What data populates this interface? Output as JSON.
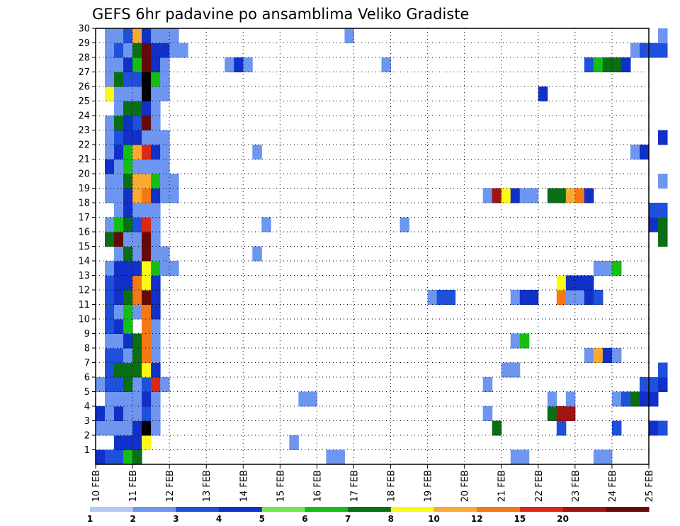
{
  "chart_data": {
    "type": "heatmap",
    "title": "GEFS 6hr padavine po ansamblima Veliko Gradiste",
    "x_ticks": [
      "10 FEB",
      "11 FEB",
      "12 FEB",
      "13 FEB",
      "14 FEB",
      "15 FEB",
      "16 FEB",
      "17 FEB",
      "18 FEB",
      "19 FEB",
      "20 FEB",
      "21 FEB",
      "22 FEB",
      "23 FEB",
      "24 FEB",
      "25 FEB"
    ],
    "y_ticks": [
      1,
      2,
      3,
      4,
      5,
      6,
      7,
      8,
      9,
      10,
      11,
      12,
      13,
      14,
      15,
      16,
      17,
      18,
      19,
      20,
      21,
      22,
      23,
      24,
      25,
      26,
      27,
      28,
      29,
      30
    ],
    "xlim": [
      0,
      15
    ],
    "ylim": [
      0,
      30
    ],
    "bin_hours": 6,
    "grid": true,
    "legend": {
      "placement": "bottom",
      "labels": [
        "1",
        "2",
        "3",
        "4",
        "5",
        "6",
        "7",
        "8",
        "10",
        "12",
        "15",
        "20"
      ],
      "colors": [
        "#b4c8f5",
        "#6e96f0",
        "#1e50dc",
        "#1030c8",
        "#78e650",
        "#14be14",
        "#0a6e14",
        "#fafa14",
        "#faaa32",
        "#f57814",
        "#dc2814",
        "#a01414",
        "#640a0a"
      ]
    },
    "cells": [
      [
        0,
        0,
        3
      ],
      [
        0,
        2,
        1
      ],
      [
        0,
        3,
        3
      ],
      [
        0,
        5,
        1
      ],
      [
        1,
        0,
        2
      ],
      [
        1,
        2,
        1
      ],
      [
        1,
        3,
        1
      ],
      [
        1,
        4,
        1
      ],
      [
        1,
        5,
        2
      ],
      [
        1,
        6,
        2
      ],
      [
        1,
        7,
        2
      ],
      [
        1,
        8,
        1
      ],
      [
        1,
        9,
        2
      ],
      [
        1,
        10,
        2
      ],
      [
        1,
        11,
        2
      ],
      [
        1,
        12,
        2
      ],
      [
        1,
        13,
        1
      ],
      [
        1,
        15,
        6
      ],
      [
        1,
        16,
        1
      ],
      [
        1,
        18,
        1
      ],
      [
        1,
        19,
        1
      ],
      [
        1,
        20,
        3
      ],
      [
        1,
        21,
        1
      ],
      [
        1,
        22,
        1
      ],
      [
        1,
        23,
        1
      ],
      [
        1,
        25,
        7
      ],
      [
        1,
        26,
        1
      ],
      [
        1,
        27,
        1
      ],
      [
        1,
        28,
        1
      ],
      [
        1,
        29,
        1
      ],
      [
        2,
        0,
        2
      ],
      [
        2,
        1,
        3
      ],
      [
        2,
        2,
        1
      ],
      [
        2,
        3,
        3
      ],
      [
        2,
        4,
        1
      ],
      [
        2,
        5,
        2
      ],
      [
        2,
        6,
        6
      ],
      [
        2,
        7,
        2
      ],
      [
        2,
        8,
        1
      ],
      [
        2,
        9,
        3
      ],
      [
        2,
        10,
        1
      ],
      [
        2,
        11,
        3
      ],
      [
        2,
        12,
        3
      ],
      [
        2,
        13,
        3
      ],
      [
        2,
        14,
        1
      ],
      [
        2,
        15,
        12
      ],
      [
        2,
        16,
        5
      ],
      [
        2,
        17,
        1
      ],
      [
        2,
        18,
        1
      ],
      [
        2,
        19,
        1
      ],
      [
        2,
        20,
        1
      ],
      [
        2,
        21,
        3
      ],
      [
        2,
        22,
        2
      ],
      [
        2,
        23,
        6
      ],
      [
        2,
        24,
        1
      ],
      [
        2,
        25,
        1
      ],
      [
        2,
        26,
        6
      ],
      [
        2,
        27,
        1
      ],
      [
        2,
        28,
        2
      ],
      [
        2,
        29,
        1
      ],
      [
        3,
        0,
        5
      ],
      [
        3,
        1,
        3
      ],
      [
        3,
        2,
        1
      ],
      [
        3,
        3,
        1
      ],
      [
        3,
        4,
        1
      ],
      [
        3,
        5,
        6
      ],
      [
        3,
        6,
        6
      ],
      [
        3,
        7,
        1
      ],
      [
        3,
        8,
        3
      ],
      [
        3,
        9,
        5
      ],
      [
        3,
        10,
        5
      ],
      [
        3,
        11,
        6
      ],
      [
        3,
        12,
        3
      ],
      [
        3,
        13,
        3
      ],
      [
        3,
        14,
        6
      ],
      [
        3,
        15,
        1
      ],
      [
        3,
        16,
        6
      ],
      [
        3,
        17,
        3
      ],
      [
        3,
        18,
        3
      ],
      [
        3,
        19,
        6
      ],
      [
        3,
        20,
        5
      ],
      [
        3,
        21,
        5
      ],
      [
        3,
        22,
        3
      ],
      [
        3,
        23,
        3
      ],
      [
        3,
        24,
        6
      ],
      [
        3,
        25,
        1
      ],
      [
        3,
        26,
        2
      ],
      [
        3,
        27,
        3
      ],
      [
        3,
        28,
        1
      ],
      [
        3,
        29,
        2
      ],
      [
        4,
        0,
        6
      ],
      [
        4,
        1,
        3
      ],
      [
        4,
        2,
        3
      ],
      [
        4,
        3,
        1
      ],
      [
        4,
        4,
        1
      ],
      [
        4,
        5,
        1
      ],
      [
        4,
        6,
        6
      ],
      [
        4,
        7,
        6
      ],
      [
        4,
        8,
        6
      ],
      [
        4,
        10,
        1
      ],
      [
        4,
        11,
        9
      ],
      [
        4,
        12,
        9
      ],
      [
        4,
        13,
        3
      ],
      [
        4,
        14,
        1
      ],
      [
        4,
        15,
        1
      ],
      [
        4,
        16,
        2
      ],
      [
        4,
        17,
        1
      ],
      [
        4,
        18,
        8
      ],
      [
        4,
        19,
        8
      ],
      [
        4,
        20,
        1
      ],
      [
        4,
        21,
        8
      ],
      [
        4,
        22,
        3
      ],
      [
        4,
        23,
        2
      ],
      [
        4,
        24,
        6
      ],
      [
        4,
        25,
        1
      ],
      [
        4,
        26,
        2
      ],
      [
        4,
        27,
        5
      ],
      [
        4,
        28,
        6
      ],
      [
        4,
        29,
        8
      ],
      [
        5,
        1,
        7
      ],
      [
        5,
        2,
        13
      ],
      [
        5,
        3,
        2
      ],
      [
        5,
        4,
        3
      ],
      [
        5,
        5,
        2
      ],
      [
        5,
        6,
        7
      ],
      [
        5,
        7,
        9
      ],
      [
        5,
        8,
        9
      ],
      [
        5,
        9,
        9
      ],
      [
        5,
        10,
        9
      ],
      [
        5,
        11,
        12
      ],
      [
        5,
        12,
        7
      ],
      [
        5,
        13,
        7
      ],
      [
        5,
        14,
        12
      ],
      [
        5,
        15,
        12
      ],
      [
        5,
        16,
        10
      ],
      [
        5,
        17,
        1
      ],
      [
        5,
        18,
        9
      ],
      [
        5,
        19,
        8
      ],
      [
        5,
        20,
        1
      ],
      [
        5,
        21,
        10
      ],
      [
        5,
        22,
        1
      ],
      [
        5,
        23,
        12
      ],
      [
        5,
        24,
        3
      ],
      [
        5,
        25,
        13
      ],
      [
        5,
        26,
        13
      ],
      [
        5,
        27,
        12
      ],
      [
        5,
        28,
        12
      ],
      [
        5,
        29,
        3
      ],
      [
        6,
        2,
        1
      ],
      [
        6,
        3,
        1
      ],
      [
        6,
        4,
        1
      ],
      [
        6,
        5,
        10
      ],
      [
        6,
        6,
        3
      ],
      [
        6,
        7,
        1
      ],
      [
        6,
        8,
        1
      ],
      [
        6,
        9,
        1
      ],
      [
        6,
        10,
        3
      ],
      [
        6,
        11,
        3
      ],
      [
        6,
        12,
        3
      ],
      [
        6,
        13,
        5
      ],
      [
        6,
        14,
        1
      ],
      [
        6,
        15,
        1
      ],
      [
        6,
        16,
        1
      ],
      [
        6,
        17,
        1
      ],
      [
        6,
        18,
        3
      ],
      [
        6,
        19,
        5
      ],
      [
        6,
        20,
        1
      ],
      [
        6,
        21,
        3
      ],
      [
        6,
        22,
        1
      ],
      [
        6,
        23,
        1
      ],
      [
        6,
        24,
        1
      ],
      [
        6,
        25,
        1
      ],
      [
        6,
        26,
        5
      ],
      [
        6,
        27,
        3
      ],
      [
        6,
        28,
        3
      ],
      [
        6,
        29,
        1
      ],
      [
        7,
        5,
        1
      ],
      [
        7,
        13,
        1
      ],
      [
        7,
        14,
        1
      ],
      [
        7,
        18,
        1
      ],
      [
        7,
        19,
        1
      ],
      [
        7,
        20,
        1
      ],
      [
        7,
        21,
        1
      ],
      [
        7,
        22,
        1
      ],
      [
        7,
        25,
        1
      ],
      [
        7,
        26,
        1
      ],
      [
        7,
        27,
        1
      ],
      [
        7,
        28,
        3
      ],
      [
        7,
        29,
        1
      ],
      [
        8,
        13,
        1
      ],
      [
        8,
        18,
        1
      ],
      [
        8,
        19,
        1
      ],
      [
        8,
        28,
        1
      ],
      [
        8,
        29,
        1
      ],
      [
        9,
        28,
        1
      ],
      [
        14,
        27,
        1
      ],
      [
        15,
        27,
        3
      ],
      [
        16,
        27,
        1
      ],
      [
        17,
        14,
        1
      ],
      [
        17,
        21,
        1
      ],
      [
        18,
        16,
        1
      ],
      [
        21,
        1,
        1
      ],
      [
        22,
        4,
        1
      ],
      [
        23,
        4,
        1
      ],
      [
        25,
        0,
        1
      ],
      [
        26,
        0,
        1
      ],
      [
        27,
        29,
        1
      ],
      [
        31,
        27,
        1
      ],
      [
        33,
        16,
        1
      ],
      [
        36,
        11,
        1
      ],
      [
        37,
        11,
        2
      ],
      [
        38,
        11,
        2
      ],
      [
        42,
        3,
        1
      ],
      [
        42,
        5,
        1
      ],
      [
        42,
        18,
        1
      ],
      [
        43,
        2,
        6
      ],
      [
        43,
        18,
        11
      ],
      [
        44,
        6,
        1
      ],
      [
        44,
        18,
        7
      ],
      [
        45,
        0,
        1
      ],
      [
        45,
        6,
        1
      ],
      [
        45,
        8,
        1
      ],
      [
        45,
        11,
        1
      ],
      [
        45,
        18,
        3
      ],
      [
        46,
        0,
        1
      ],
      [
        46,
        8,
        5
      ],
      [
        46,
        11,
        3
      ],
      [
        46,
        18,
        1
      ],
      [
        47,
        11,
        3
      ],
      [
        47,
        18,
        1
      ],
      [
        48,
        25,
        3
      ],
      [
        49,
        3,
        6
      ],
      [
        49,
        4,
        1
      ],
      [
        49,
        18,
        6
      ],
      [
        50,
        2,
        2
      ],
      [
        50,
        3,
        11
      ],
      [
        50,
        11,
        9
      ],
      [
        50,
        12,
        7
      ],
      [
        50,
        18,
        6
      ],
      [
        51,
        3,
        11
      ],
      [
        51,
        4,
        1
      ],
      [
        51,
        11,
        1
      ],
      [
        51,
        12,
        3
      ],
      [
        51,
        18,
        8
      ],
      [
        52,
        11,
        1
      ],
      [
        52,
        12,
        3
      ],
      [
        52,
        18,
        9
      ],
      [
        53,
        7,
        1
      ],
      [
        53,
        11,
        3
      ],
      [
        53,
        12,
        3
      ],
      [
        53,
        18,
        3
      ],
      [
        53,
        27,
        2
      ],
      [
        54,
        0,
        1
      ],
      [
        54,
        7,
        8
      ],
      [
        54,
        11,
        2
      ],
      [
        54,
        13,
        1
      ],
      [
        54,
        27,
        5
      ],
      [
        55,
        0,
        1
      ],
      [
        55,
        7,
        3
      ],
      [
        55,
        13,
        1
      ],
      [
        55,
        27,
        6
      ],
      [
        56,
        2,
        2
      ],
      [
        56,
        4,
        1
      ],
      [
        56,
        7,
        1
      ],
      [
        56,
        13,
        5
      ],
      [
        56,
        27,
        6
      ],
      [
        57,
        4,
        2
      ],
      [
        57,
        27,
        3
      ],
      [
        58,
        4,
        6
      ],
      [
        58,
        21,
        1
      ],
      [
        58,
        28,
        1
      ],
      [
        59,
        4,
        3
      ],
      [
        59,
        5,
        2
      ],
      [
        59,
        21,
        3
      ],
      [
        59,
        28,
        2
      ],
      [
        60,
        2,
        3
      ],
      [
        60,
        4,
        3
      ],
      [
        60,
        5,
        2
      ],
      [
        60,
        16,
        3
      ],
      [
        60,
        17,
        2
      ],
      [
        60,
        28,
        2
      ],
      [
        61,
        2,
        2
      ],
      [
        61,
        5,
        3
      ],
      [
        61,
        6,
        2
      ],
      [
        61,
        15,
        6
      ],
      [
        61,
        16,
        6
      ],
      [
        61,
        17,
        2
      ],
      [
        61,
        19,
        1
      ],
      [
        61,
        22,
        3
      ],
      [
        61,
        28,
        2
      ],
      [
        61,
        29,
        1
      ]
    ]
  }
}
